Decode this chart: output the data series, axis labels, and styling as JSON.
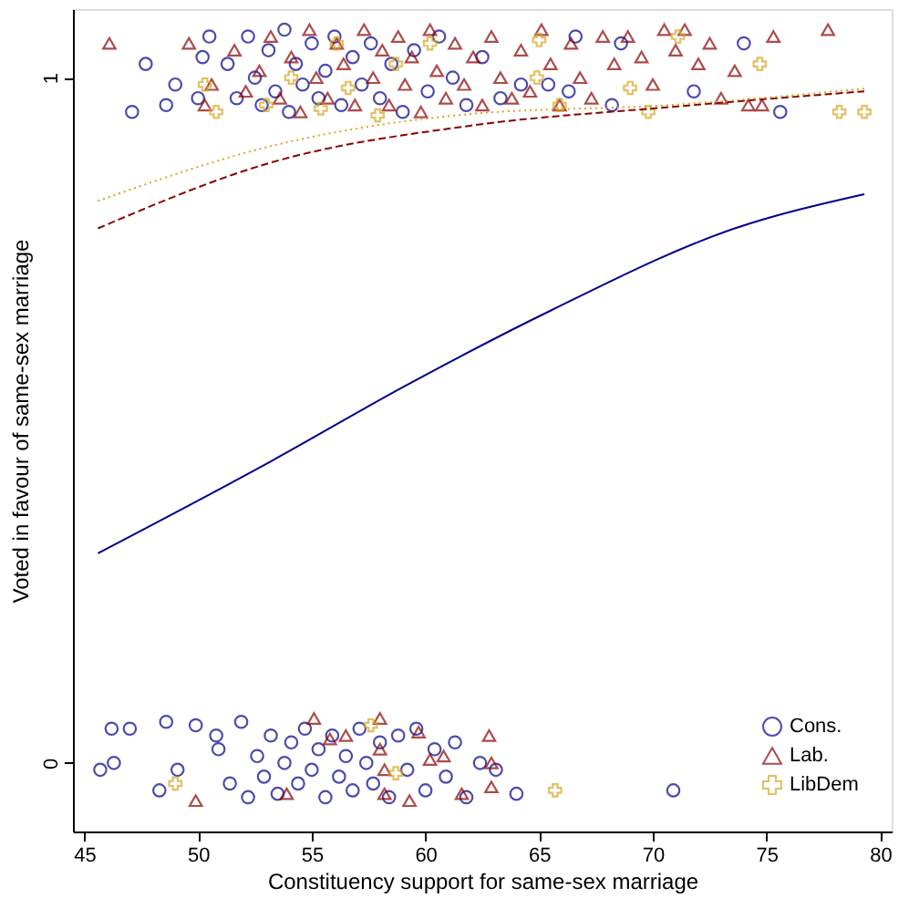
{
  "chart_data": {
    "type": "scatter",
    "xlabel": "Constituency support for same-sex marriage",
    "ylabel": "Voted in favour of same-sex marriage",
    "xlim": [
      44.5,
      80.5
    ],
    "xticks": [
      45,
      50,
      55,
      60,
      65,
      70,
      75,
      80
    ],
    "ylim": [
      -0.1,
      1.1
    ],
    "yticks": [
      0,
      1
    ],
    "grid": false,
    "legend": "bottom right",
    "series": [
      {
        "name": "Cons.",
        "marker": "circle",
        "color": "#00008b",
        "x": [
          47.1,
          47.7,
          49,
          48.6,
          50,
          50.2,
          50.5,
          51.3,
          51.7,
          52.2,
          52.5,
          52.8,
          53.1,
          53.4,
          53.8,
          54.0,
          54.3,
          54.6,
          55.0,
          55.3,
          55.6,
          56.0,
          56.3,
          56.8,
          57.2,
          57.6,
          58.0,
          58.5,
          59.0,
          59.5,
          60.1,
          60.6,
          61.2,
          61.8,
          62.5,
          63.3,
          64.2,
          65.4,
          66.3,
          66.6,
          68.2,
          68.6,
          71.8,
          74,
          75.6,
          45.7,
          46.2,
          46.3,
          47,
          48.3,
          48.6,
          49.1,
          49.9,
          50.8,
          50.9,
          51.4,
          51.9,
          52.2,
          52.6,
          52.9,
          53.2,
          53.5,
          53.8,
          54.1,
          54.4,
          54.7,
          55.0,
          55.3,
          55.6,
          55.9,
          56.2,
          56.5,
          56.8,
          57.1,
          57.4,
          57.7,
          58.0,
          58.4,
          58.8,
          59.2,
          59.6,
          60.0,
          60.4,
          60.9,
          61.3,
          61.8,
          62.4,
          63.1,
          64,
          70.9
        ],
        "values": [
          0.95,
          1.02,
          0.99,
          0.96,
          0.97,
          1.03,
          1.06,
          1.02,
          0.97,
          1.06,
          1.0,
          0.96,
          1.04,
          0.98,
          1.07,
          0.95,
          1.02,
          0.99,
          1.05,
          0.97,
          1.01,
          1.06,
          0.96,
          1.03,
          0.99,
          1.05,
          0.97,
          1.02,
          0.95,
          1.04,
          0.98,
          1.06,
          1.0,
          0.96,
          1.03,
          0.97,
          0.99,
          0.99,
          0.98,
          1.06,
          0.96,
          1.05,
          0.98,
          1.05,
          0.95,
          -0.01,
          0.05,
          0.0,
          0.05,
          -0.04,
          0.06,
          -0.01,
          0.055,
          0.04,
          0.02,
          -0.03,
          0.06,
          -0.05,
          0.01,
          -0.02,
          0.04,
          -0.045,
          0.0,
          0.03,
          -0.03,
          0.05,
          -0.01,
          0.02,
          -0.05,
          0.04,
          -0.02,
          0.01,
          -0.04,
          0.05,
          0.0,
          -0.03,
          0.03,
          -0.05,
          0.04,
          -0.01,
          0.05,
          -0.04,
          0.02,
          -0.02,
          0.03,
          -0.05,
          0.0,
          -0.01,
          -0.045,
          -0.04
        ]
      },
      {
        "name": "Lab.",
        "marker": "triangle",
        "color": "#8b0000",
        "x": [
          46.1,
          49.6,
          50.6,
          50.3,
          51.6,
          52.1,
          52.7,
          53.2,
          53.6,
          54.1,
          54.5,
          54.9,
          55.2,
          55.7,
          56.1,
          56.4,
          56.9,
          57.3,
          57.7,
          58.1,
          58.4,
          58.8,
          59.1,
          59.4,
          59.8,
          60.2,
          60.5,
          60.9,
          61.3,
          61.7,
          62.1,
          62.5,
          62.9,
          63.3,
          63.8,
          64.2,
          64.6,
          65.1,
          65.5,
          65.9,
          66.4,
          66.8,
          67.3,
          67.8,
          68.3,
          68.9,
          69.5,
          70.0,
          70.5,
          71.0,
          71.4,
          72.0,
          72.5,
          73.0,
          73.6,
          74.2,
          74.8,
          75.3,
          77.7,
          49.9,
          53.9,
          55.1,
          55.8,
          56.5,
          58,
          58,
          58.2,
          58.2,
          59.3,
          59.7,
          60.2,
          60.8,
          61.6,
          62.8,
          62.9,
          62.9
        ],
        "values": [
          1.05,
          1.05,
          0.99,
          0.96,
          1.04,
          0.98,
          1.01,
          1.06,
          0.97,
          1.03,
          0.95,
          1.07,
          1.0,
          0.97,
          1.05,
          1.02,
          0.96,
          1.07,
          1.0,
          1.04,
          0.96,
          1.06,
          0.99,
          1.03,
          0.95,
          1.07,
          1.01,
          0.97,
          1.05,
          0.99,
          1.03,
          0.96,
          1.06,
          1.0,
          0.97,
          1.04,
          0.98,
          1.07,
          1.02,
          0.96,
          1.05,
          1.0,
          0.97,
          1.06,
          1.02,
          1.06,
          1.03,
          0.99,
          1.07,
          1.04,
          1.07,
          1.02,
          1.05,
          0.97,
          1.01,
          0.96,
          0.96,
          1.06,
          1.07,
          -0.055,
          -0.045,
          0.065,
          0.035,
          0.04,
          0.065,
          0.02,
          -0.01,
          -0.045,
          -0.055,
          0.045,
          0.005,
          0.01,
          -0.045,
          0.04,
          0.0,
          -0.035
        ]
      },
      {
        "name": "LibDem",
        "marker": "cross",
        "color": "#daa520",
        "x": [
          50.3,
          50.8,
          53,
          54.1,
          55.4,
          56.1,
          56.6,
          57.9,
          58.7,
          60.2,
          64.9,
          65,
          65.9,
          69,
          69.8,
          71.1,
          74.7,
          78.2,
          79.3,
          49,
          57.6,
          58.7,
          65.7
        ],
        "values": [
          0.99,
          0.95,
          0.96,
          1.0,
          0.955,
          1.05,
          0.985,
          0.945,
          1.02,
          1.05,
          1.0,
          1.055,
          0.96,
          0.985,
          0.95,
          1.06,
          1.02,
          0.95,
          0.95,
          -0.03,
          0.055,
          -0.015,
          -0.04
        ]
      },
      {
        "type": "line",
        "line_style": "solid",
        "color": "#00008b",
        "x": [
          45.6,
          53.2,
          59.1,
          65.5,
          73.6,
          79.3
        ],
        "values": [
          0.306,
          0.44,
          0.55,
          0.66,
          0.78,
          0.83
        ]
      },
      {
        "type": "line",
        "line_style": "dashed",
        "color": "#8b0000",
        "x": [
          45.6,
          53.2,
          62,
          70.7,
          79.3
        ],
        "values": [
          0.78,
          0.876,
          0.93,
          0.957,
          0.98
        ]
      },
      {
        "type": "line",
        "line_style": "dotted",
        "color": "#daa520",
        "x": [
          45.6,
          53.2,
          62,
          70.7,
          79.3
        ],
        "values": [
          0.82,
          0.9,
          0.947,
          0.96,
          0.984
        ]
      }
    ]
  }
}
